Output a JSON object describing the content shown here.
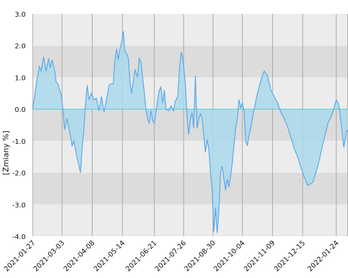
{
  "chart_data": {
    "type": "area",
    "ylabel": "[Zmiany %]",
    "ylim": [
      -4.0,
      3.0
    ],
    "yticks": [
      "3.0",
      "2.0",
      "1.0",
      "0.0",
      "-1.0",
      "-2.0",
      "-3.0",
      "-4.0"
    ],
    "ytick_values": [
      3,
      2,
      1,
      0,
      -1,
      -2,
      -3,
      -4
    ],
    "xticks": [
      "2021-01-27",
      "2021-03-03",
      "2021-04-08",
      "2021-05-14",
      "2021-06-21",
      "2021-07-26",
      "2021-08-30",
      "2021-10-04",
      "2021-11-09",
      "2021-12-15",
      "2022-01-24"
    ],
    "xlim": [
      "2021-01-27",
      "2022-02-07"
    ],
    "grid": true,
    "band_colors": [
      "#ececec",
      "#dcdcdc"
    ],
    "line_color": "#5aa7e8",
    "fill_color": "#aad9ec",
    "zero_line_color": "#59c7d9",
    "series": [
      {
        "values": [
          [
            "2021-01-27",
            0.0
          ],
          [
            "2021-02-01",
            0.9
          ],
          [
            "2021-02-04",
            1.35
          ],
          [
            "2021-02-06",
            1.2
          ],
          [
            "2021-02-09",
            1.65
          ],
          [
            "2021-02-12",
            1.2
          ],
          [
            "2021-02-15",
            1.6
          ],
          [
            "2021-02-17",
            1.3
          ],
          [
            "2021-02-19",
            1.55
          ],
          [
            "2021-02-22",
            1.25
          ],
          [
            "2021-02-24",
            0.85
          ],
          [
            "2021-02-26",
            0.8
          ],
          [
            "2021-03-02",
            0.45
          ],
          [
            "2021-03-04",
            0.0
          ],
          [
            "2021-03-06",
            -0.65
          ],
          [
            "2021-03-09",
            -0.3
          ],
          [
            "2021-03-12",
            -0.7
          ],
          [
            "2021-03-15",
            -1.15
          ],
          [
            "2021-03-17",
            -1.0
          ],
          [
            "2021-03-19",
            -1.25
          ],
          [
            "2021-03-21",
            -1.55
          ],
          [
            "2021-03-23",
            -1.75
          ],
          [
            "2021-03-25",
            -2.0
          ],
          [
            "2021-03-27",
            -1.2
          ],
          [
            "2021-03-29",
            -0.65
          ],
          [
            "2021-03-31",
            0.2
          ],
          [
            "2021-04-02",
            0.75
          ],
          [
            "2021-04-04",
            0.3
          ],
          [
            "2021-04-07",
            0.5
          ],
          [
            "2021-04-10",
            0.3
          ],
          [
            "2021-04-13",
            0.35
          ],
          [
            "2021-04-16",
            -0.05
          ],
          [
            "2021-04-19",
            0.4
          ],
          [
            "2021-04-22",
            -0.1
          ],
          [
            "2021-04-25",
            0.3
          ],
          [
            "2021-04-28",
            0.75
          ],
          [
            "2021-04-30",
            0.8
          ],
          [
            "2021-05-03",
            0.8
          ],
          [
            "2021-05-05",
            1.55
          ],
          [
            "2021-05-07",
            1.9
          ],
          [
            "2021-05-09",
            1.55
          ],
          [
            "2021-05-11",
            1.9
          ],
          [
            "2021-05-13",
            2.1
          ],
          [
            "2021-05-15",
            2.45
          ],
          [
            "2021-05-17",
            1.8
          ],
          [
            "2021-05-19",
            1.75
          ],
          [
            "2021-05-21",
            1.6
          ],
          [
            "2021-05-23",
            0.9
          ],
          [
            "2021-05-25",
            0.5
          ],
          [
            "2021-05-27",
            0.9
          ],
          [
            "2021-05-29",
            1.25
          ],
          [
            "2021-06-01",
            1.0
          ],
          [
            "2021-06-03",
            1.6
          ],
          [
            "2021-06-05",
            1.5
          ],
          [
            "2021-06-07",
            1.0
          ],
          [
            "2021-06-09",
            0.55
          ],
          [
            "2021-06-11",
            0.0
          ],
          [
            "2021-06-13",
            -0.3
          ],
          [
            "2021-06-15",
            -0.45
          ],
          [
            "2021-06-17",
            -0.05
          ],
          [
            "2021-06-19",
            -0.35
          ],
          [
            "2021-06-21",
            -0.45
          ],
          [
            "2021-06-23",
            -0.1
          ],
          [
            "2021-06-25",
            0.3
          ],
          [
            "2021-06-27",
            0.6
          ],
          [
            "2021-06-29",
            0.7
          ],
          [
            "2021-07-01",
            0.2
          ],
          [
            "2021-07-03",
            0.6
          ],
          [
            "2021-07-05",
            0.0
          ],
          [
            "2021-07-08",
            -0.05
          ],
          [
            "2021-07-11",
            0.1
          ],
          [
            "2021-07-14",
            -0.05
          ],
          [
            "2021-07-16",
            0.25
          ],
          [
            "2021-07-19",
            0.4
          ],
          [
            "2021-07-21",
            1.25
          ],
          [
            "2021-07-23",
            1.8
          ],
          [
            "2021-07-25",
            1.6
          ],
          [
            "2021-07-28",
            0.8
          ],
          [
            "2021-07-30",
            -0.2
          ],
          [
            "2021-08-01",
            -0.8
          ],
          [
            "2021-08-03",
            -0.35
          ],
          [
            "2021-08-05",
            -0.1
          ],
          [
            "2021-08-07",
            -0.6
          ],
          [
            "2021-08-09",
            1.05
          ],
          [
            "2021-08-11",
            -0.6
          ],
          [
            "2021-08-13",
            -0.3
          ],
          [
            "2021-08-15",
            -0.15
          ],
          [
            "2021-08-17",
            -0.3
          ],
          [
            "2021-08-19",
            -0.85
          ],
          [
            "2021-08-21",
            -1.35
          ],
          [
            "2021-08-23",
            -0.95
          ],
          [
            "2021-08-25",
            -1.25
          ],
          [
            "2021-08-27",
            -2.0
          ],
          [
            "2021-08-29",
            -2.55
          ],
          [
            "2021-08-31",
            -3.85
          ],
          [
            "2021-09-02",
            -3.1
          ],
          [
            "2021-09-04",
            -3.9
          ],
          [
            "2021-09-06",
            -3.2
          ],
          [
            "2021-09-08",
            -2.0
          ],
          [
            "2021-09-10",
            -1.8
          ],
          [
            "2021-09-12",
            -2.2
          ],
          [
            "2021-09-14",
            -2.55
          ],
          [
            "2021-09-16",
            -2.2
          ],
          [
            "2021-09-18",
            -2.45
          ],
          [
            "2021-09-20",
            -2.1
          ],
          [
            "2021-09-22",
            -1.7
          ],
          [
            "2021-09-24",
            -1.15
          ],
          [
            "2021-09-26",
            -0.6
          ],
          [
            "2021-09-28",
            -0.3
          ],
          [
            "2021-09-30",
            0.3
          ],
          [
            "2021-10-02",
            0.05
          ],
          [
            "2021-10-04",
            0.2
          ],
          [
            "2021-10-06",
            -0.05
          ],
          [
            "2021-10-08",
            -1.0
          ],
          [
            "2021-10-10",
            -1.15
          ],
          [
            "2021-10-12",
            -0.8
          ],
          [
            "2021-10-14",
            -0.6
          ],
          [
            "2021-10-18",
            0.0
          ],
          [
            "2021-10-22",
            0.5
          ],
          [
            "2021-10-26",
            0.9
          ],
          [
            "2021-10-30",
            1.2
          ],
          [
            "2021-11-03",
            1.05
          ],
          [
            "2021-11-07",
            0.6
          ],
          [
            "2021-11-11",
            0.4
          ],
          [
            "2021-11-15",
            0.2
          ],
          [
            "2021-11-19",
            -0.1
          ],
          [
            "2021-11-23",
            -0.3
          ],
          [
            "2021-11-27",
            -0.55
          ],
          [
            "2021-12-01",
            -0.9
          ],
          [
            "2021-12-05",
            -1.25
          ],
          [
            "2021-12-09",
            -1.5
          ],
          [
            "2021-12-13",
            -1.85
          ],
          [
            "2021-12-17",
            -2.15
          ],
          [
            "2021-12-21",
            -2.4
          ],
          [
            "2021-12-27",
            -2.3
          ],
          [
            "2022-01-02",
            -1.8
          ],
          [
            "2022-01-08",
            -1.1
          ],
          [
            "2022-01-14",
            -0.45
          ],
          [
            "2022-01-20",
            -0.1
          ],
          [
            "2022-01-24",
            0.3
          ],
          [
            "2022-01-27",
            0.15
          ],
          [
            "2022-01-30",
            -0.5
          ],
          [
            "2022-02-02",
            -1.2
          ],
          [
            "2022-02-05",
            -0.7
          ],
          [
            "2022-02-07",
            -0.65
          ]
        ]
      }
    ]
  }
}
